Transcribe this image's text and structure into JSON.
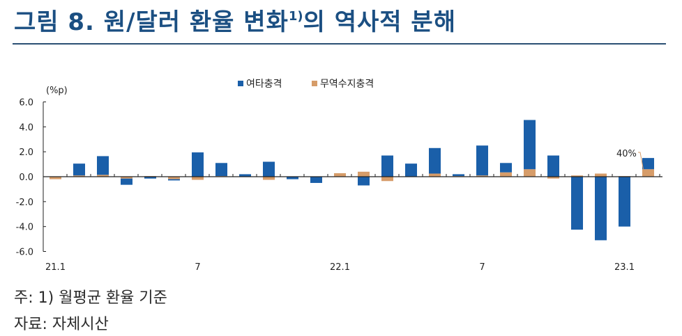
{
  "header": {
    "title_main": "그림 8. 원/달러 환율 변화",
    "title_sup": "1)",
    "title_tail": "의 역사적 분해"
  },
  "notes": {
    "footnote": "주: 1) 월평균 환율 기준",
    "source": "자료: 자체시산"
  },
  "colors": {
    "title": "#1b4f82",
    "rule": "#2a4f73",
    "series_other": "#1a5fa9",
    "series_trade": "#d69c69",
    "axis": "#222222"
  },
  "chart_data": {
    "type": "bar",
    "stacked": true,
    "title": "원/달러 환율 변화의 역사적 분해",
    "ylabel": "(%p)",
    "xlabel": "",
    "ylim": [
      -6.0,
      6.0
    ],
    "yticks": [
      "6.0",
      "4.0",
      "2.0",
      "0.0",
      "-2.0",
      "-4.0",
      "-6.0"
    ],
    "ytick_values": [
      6,
      4,
      2,
      0,
      -2,
      -4,
      -6
    ],
    "grid": false,
    "legend_position": "top",
    "categories": [
      "21.1",
      "21.2",
      "21.3",
      "21.4",
      "21.5",
      "21.6",
      "21.7",
      "21.8",
      "21.9",
      "21.10",
      "21.11",
      "21.12",
      "22.1",
      "22.2",
      "22.3",
      "22.4",
      "22.5",
      "22.6",
      "22.7",
      "22.8",
      "22.9",
      "22.10",
      "22.11",
      "22.12",
      "23.1",
      "23.2"
    ],
    "xtick_labels": [
      {
        "index": 0,
        "label": "21.1"
      },
      {
        "index": 6,
        "label": "7"
      },
      {
        "index": 12,
        "label": "22.1"
      },
      {
        "index": 18,
        "label": "7"
      },
      {
        "index": 24,
        "label": "23.1"
      }
    ],
    "series": [
      {
        "name": "여타충격",
        "color": "#1a5fa9",
        "values": [
          0.0,
          0.95,
          1.5,
          -0.5,
          -0.15,
          -0.1,
          1.95,
          1.05,
          0.2,
          1.2,
          -0.2,
          -0.5,
          0.0,
          -0.7,
          1.7,
          1.05,
          2.05,
          0.15,
          2.4,
          0.75,
          3.95,
          1.7,
          -4.25,
          -5.1,
          -4.0,
          0.9
        ]
      },
      {
        "name": "무역수지충격",
        "color": "#d69c69",
        "values": [
          -0.2,
          0.1,
          0.15,
          -0.15,
          0.05,
          -0.2,
          -0.25,
          0.05,
          0.0,
          -0.25,
          0.0,
          0.0,
          0.28,
          0.4,
          -0.35,
          0.0,
          0.25,
          0.05,
          0.1,
          0.35,
          0.6,
          -0.15,
          0.1,
          0.25,
          0.05,
          0.6
        ]
      }
    ],
    "annotations": [
      {
        "text": "40%",
        "target_index": 25,
        "note": "무역수지충격 share of latest change"
      }
    ]
  }
}
